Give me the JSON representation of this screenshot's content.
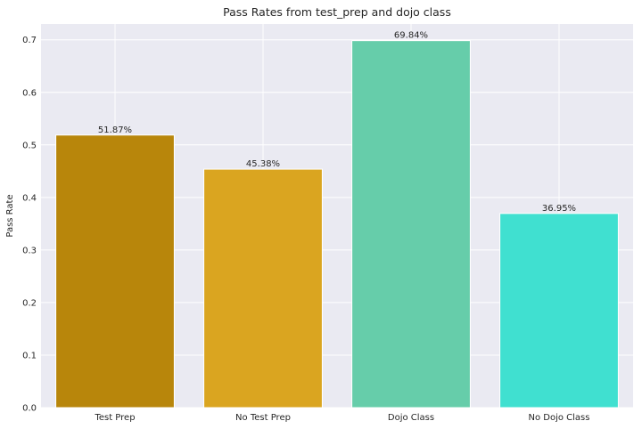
{
  "chart_data": {
    "type": "bar",
    "title": "Pass Rates from test_prep and dojo class",
    "xlabel": "",
    "ylabel": "Pass Rate",
    "categories": [
      "Test Prep",
      "No Test Prep",
      "Dojo Class",
      "No Dojo Class"
    ],
    "values": [
      0.5187,
      0.4538,
      0.6984,
      0.3695
    ],
    "data_labels": [
      "51.87%",
      "45.38%",
      "69.84%",
      "36.95%"
    ],
    "colors": [
      "#b8860b",
      "#daa520",
      "#66cdaa",
      "#40e0d0"
    ],
    "ylim": [
      0,
      0.73
    ],
    "yticks": [
      0.0,
      0.1,
      0.2,
      0.3,
      0.4,
      0.5,
      0.6,
      0.7
    ],
    "ytick_labels": [
      "0.0",
      "0.1",
      "0.2",
      "0.3",
      "0.4",
      "0.5",
      "0.6",
      "0.7"
    ],
    "grid": true,
    "background": "#eaeaf2",
    "grid_color": "#ffffff"
  }
}
